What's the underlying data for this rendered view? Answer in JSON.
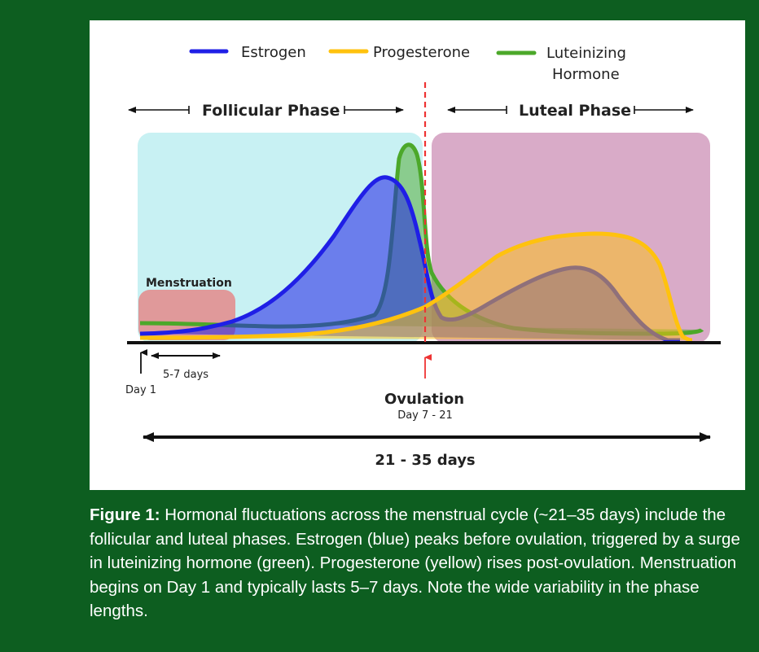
{
  "legend": [
    {
      "name": "Estrogen",
      "color": "#1f1fe6"
    },
    {
      "name": "Progesterone",
      "color": "#ffc20e"
    },
    {
      "name": "Luteinizing Hormone",
      "line1": "Luteinizing",
      "line2": "Hormone",
      "color": "#4ca82a"
    }
  ],
  "phases": {
    "follicular": "Follicular Phase",
    "luteal": "Luteal Phase",
    "follicular_color": "#c8f1f3",
    "luteal_color": "#d9abc8"
  },
  "menstruation": {
    "label": "Menstruation",
    "duration": "5-7 days",
    "start": "Day 1",
    "color": "#e48a8a"
  },
  "ovulation": {
    "label": "Ovulation",
    "range": "Day 7 - 21",
    "color": "#ee3333"
  },
  "cycle_length": "21 - 35 days",
  "caption": {
    "label": "Figure 1:",
    "text": " Hormonal fluctuations across the menstrual cycle (~21–35 days) include the follicular and luteal phases. Estrogen (blue) peaks before ovulation, triggered by a surge in luteinizing hormone (green). Progesterone (yellow) rises post-ovulation. Menstruation begins on Day 1 and typically lasts 5–7 days. Note the wide variability in the phase lengths."
  },
  "colors": {
    "background": "#0d5e20",
    "panel": "#ffffff"
  }
}
